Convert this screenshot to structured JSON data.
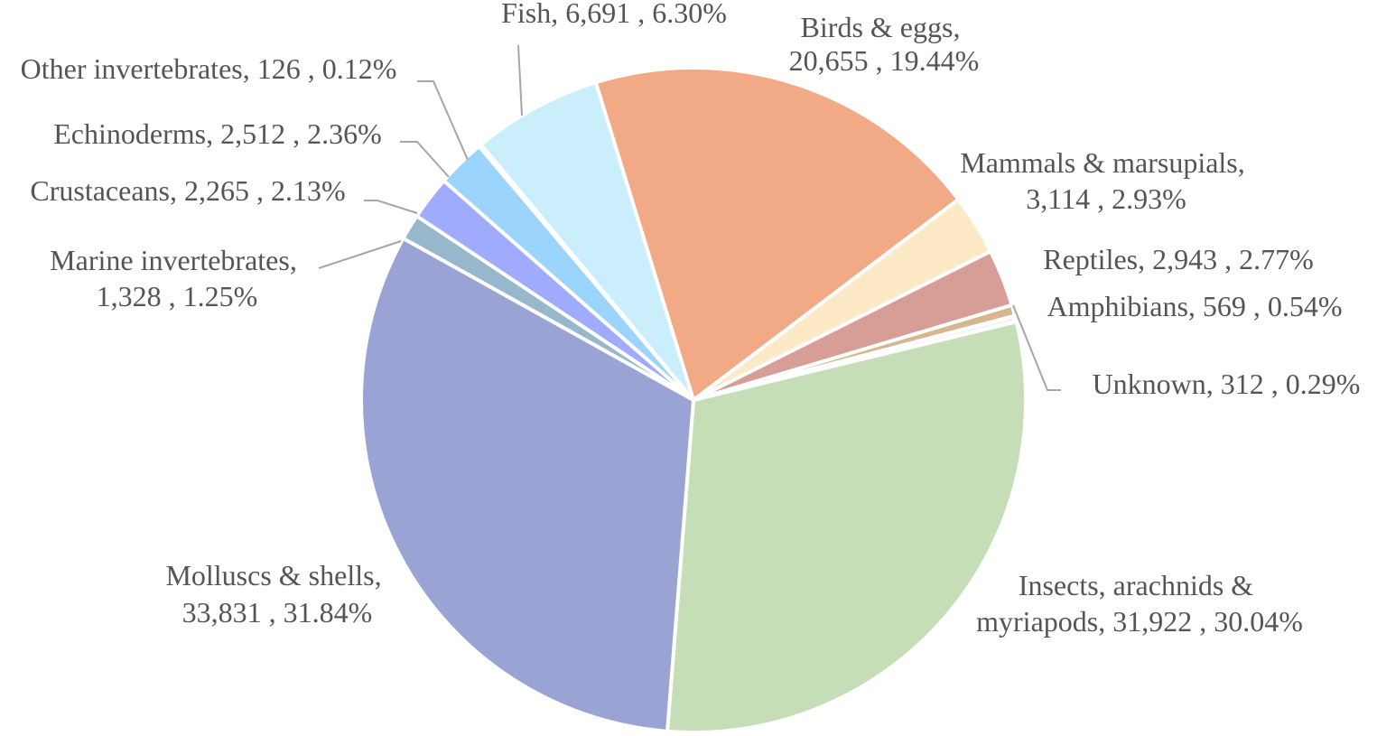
{
  "chart_data": {
    "type": "pie",
    "title": "",
    "slices": [
      {
        "name": "Birds & eggs",
        "value": 20655,
        "percent": "19.44%",
        "value_text": "20,655",
        "color": "#f2a985"
      },
      {
        "name": "Mammals & marsupials",
        "value": 3114,
        "percent": "2.93%",
        "value_text": "3,114",
        "color": "#fde9c5"
      },
      {
        "name": "Reptiles",
        "value": 2943,
        "percent": "2.77%",
        "value_text": "2,943",
        "color": "#d79e98"
      },
      {
        "name": "Amphibians",
        "value": 569,
        "percent": "0.54%",
        "value_text": "569",
        "color": "#d7b68d"
      },
      {
        "name": "Unknown",
        "value": 312,
        "percent": "0.29%",
        "value_text": "312",
        "color": "#f4f4f4"
      },
      {
        "name": "Insects, arachnids & myriapods",
        "value": 31922,
        "percent": "30.04%",
        "value_text": "31,922",
        "color": "#c6deb7"
      },
      {
        "name": "Molluscs & shells",
        "value": 33831,
        "percent": "31.84%",
        "value_text": "33,831",
        "color": "#9aa4d4"
      },
      {
        "name": "Marine invertebrates",
        "value": 1328,
        "percent": "1.25%",
        "value_text": "1,328",
        "color": "#97b7cd"
      },
      {
        "name": "Crustaceans",
        "value": 2265,
        "percent": "2.13%",
        "value_text": "2,265",
        "color": "#9fabfd"
      },
      {
        "name": "Echinoderms",
        "value": 2512,
        "percent": "2.36%",
        "value_text": "2,512",
        "color": "#9bd4fc"
      },
      {
        "name": "Other invertebrates",
        "value": 126,
        "percent": "0.12%",
        "value_text": "126",
        "color": "#c9edf9"
      },
      {
        "name": "Fish",
        "value": 6691,
        "percent": "6.30%",
        "value_text": "6,691",
        "color": "#cbeefd"
      }
    ],
    "labels": [
      {
        "lines": [
          "Fish,  6,691 , 6.30%"
        ]
      },
      {
        "lines": [
          "Birds & eggs,",
          "20,655 , 19.44%"
        ]
      },
      {
        "lines": [
          "Other invertebrates,  126 , 0.12%"
        ]
      },
      {
        "lines": [
          "Echinoderms,  2,512 , 2.36%"
        ]
      },
      {
        "lines": [
          "Crustaceans,  2,265 , 2.13%"
        ]
      },
      {
        "lines": [
          "Marine invertebrates,",
          "1,328 , 1.25%"
        ]
      },
      {
        "lines": [
          "Mammals & marsupials,",
          "3,114 , 2.93%"
        ]
      },
      {
        "lines": [
          "Reptiles,  2,943 , 2.77%"
        ]
      },
      {
        "lines": [
          "Amphibians,  569 , 0.54%"
        ]
      },
      {
        "lines": [
          "Unknown,  312 , 0.29%"
        ]
      },
      {
        "lines": [
          "Molluscs & shells,",
          "33,831 , 31.84%"
        ]
      },
      {
        "lines": [
          "Insects, arachnids &",
          "myriapods,  31,922 , 30.04%"
        ]
      }
    ]
  }
}
